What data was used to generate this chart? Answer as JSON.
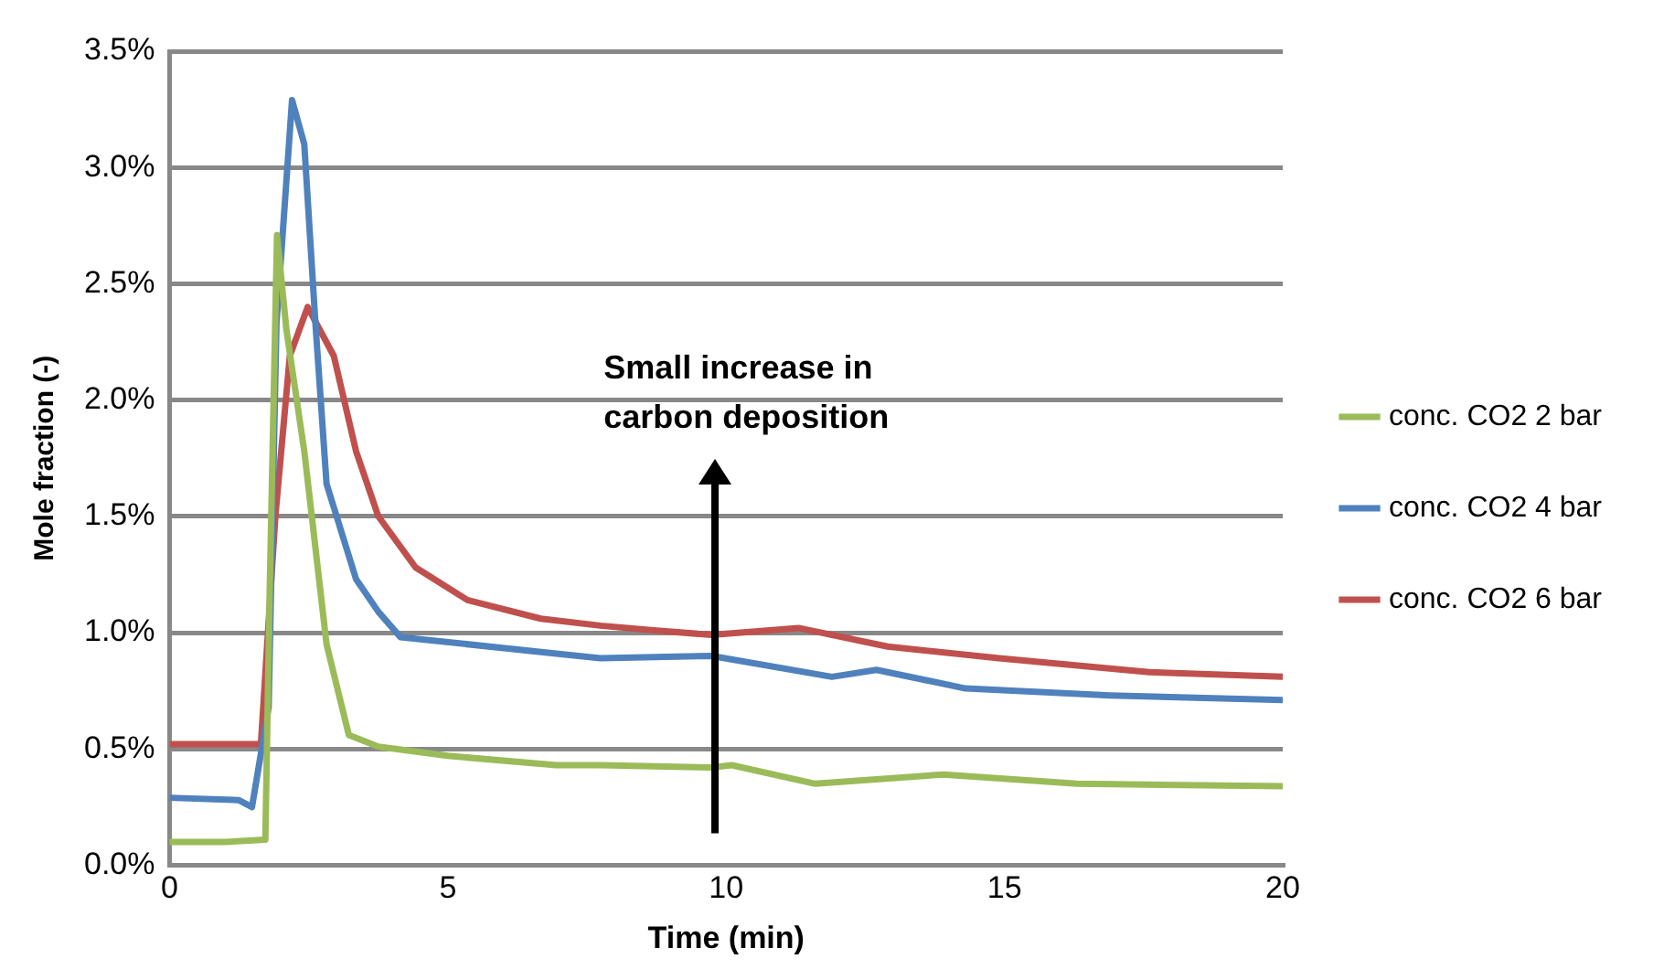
{
  "chart_data": {
    "type": "line",
    "xlabel": "Time (min)",
    "ylabel": "Mole fraction (-)",
    "annotations": [
      "Small increase in carbon deposition"
    ],
    "xlim": [
      0,
      20
    ],
    "xticks": [
      0,
      5,
      10,
      15,
      20
    ],
    "ylim": [
      0,
      3.5
    ],
    "yticks": [
      {
        "value": 0,
        "label": "0.0%"
      },
      {
        "value": 0.5,
        "label": "0.5%"
      },
      {
        "value": 1,
        "label": "1.0%"
      },
      {
        "value": 1.5,
        "label": "1.5%"
      },
      {
        "value": 2,
        "label": "2.0%"
      },
      {
        "value": 2.5,
        "label": "2.5%"
      },
      {
        "value": 3,
        "label": "3.0%"
      },
      {
        "value": 3.5,
        "label": "3.5%"
      }
    ],
    "grid": "y",
    "legend": "right",
    "marker": "none",
    "line_style": "solid",
    "series": [
      {
        "name": "conc. CO2 2 bar",
        "color": "#9bbb59",
        "x": [
          0,
          1,
          1.72,
          1.8,
          1.93,
          2.1,
          2.42,
          2.82,
          3.22,
          3.75,
          5,
          6.95,
          7.74,
          9.74,
          10.1,
          11.6,
          13.9,
          16.3,
          20
        ],
        "values": [
          0.1,
          0.1,
          0.11,
          1.2,
          2.71,
          2.3,
          1.78,
          0.95,
          0.56,
          0.51,
          0.47,
          0.43,
          0.43,
          0.42,
          0.43,
          0.35,
          0.39,
          0.35,
          0.34
        ]
      },
      {
        "name": "conc. CO2 4 bar",
        "color": "#4f81bd",
        "x": [
          0,
          1.24,
          1.48,
          1.78,
          1.92,
          2.2,
          2.42,
          2.62,
          2.82,
          3.35,
          3.75,
          4.15,
          6.95,
          7.74,
          9.74,
          11.9,
          12.7,
          14.3,
          16.9,
          20
        ],
        "values": [
          0.29,
          0.28,
          0.25,
          0.68,
          2.33,
          3.29,
          3.1,
          2.33,
          1.64,
          1.23,
          1.09,
          0.98,
          0.91,
          0.89,
          0.9,
          0.81,
          0.84,
          0.76,
          0.73,
          0.71
        ]
      },
      {
        "name": "conc. CO2 6 bar",
        "color": "#c0504d",
        "x": [
          0,
          1.64,
          1.9,
          2.16,
          2.48,
          2.95,
          3.35,
          3.75,
          4.42,
          5.35,
          6.67,
          7.74,
          8.7,
          9.74,
          11.3,
          12.9,
          14.9,
          17.6,
          20
        ],
        "values": [
          0.52,
          0.52,
          1.5,
          2.19,
          2.4,
          2.19,
          1.78,
          1.5,
          1.28,
          1.14,
          1.06,
          1.03,
          1.01,
          0.99,
          1.02,
          0.94,
          0.89,
          0.83,
          0.81
        ]
      }
    ]
  }
}
